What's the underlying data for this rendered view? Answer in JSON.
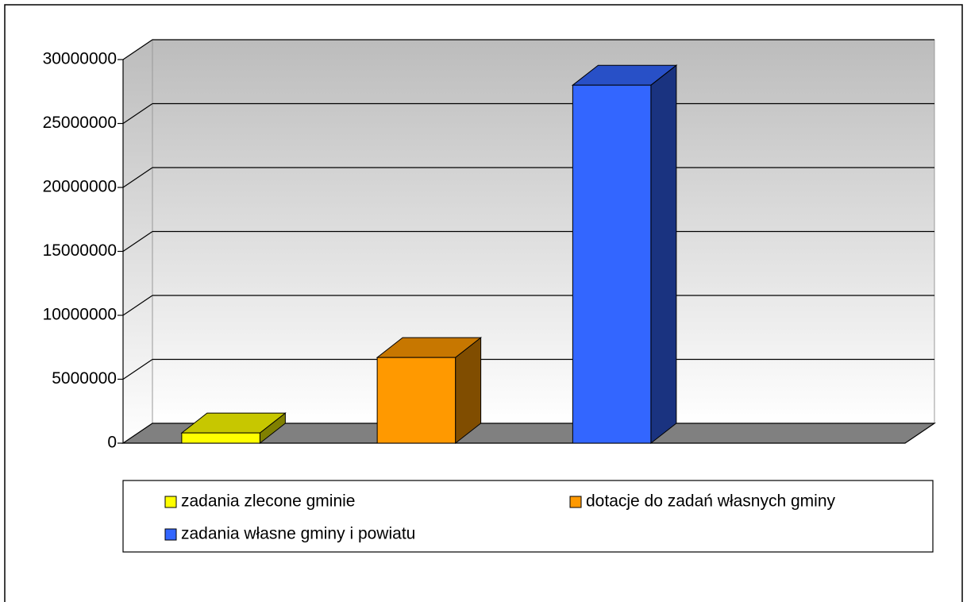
{
  "chart_data": {
    "type": "bar3d",
    "categories": [
      null
    ],
    "series": [
      {
        "name": "zadania zlecone gminie",
        "color": "#ffff00",
        "values": [
          800000
        ]
      },
      {
        "name": "dotacje do zadań własnych gminy",
        "color": "#ff9900",
        "values": [
          6700000
        ]
      },
      {
        "name": "zadania własne gminy i powiatu",
        "color": "#3366ff",
        "values": [
          28000000
        ]
      }
    ],
    "ylim": [
      0,
      30000000
    ],
    "yticks": [
      0,
      5000000,
      10000000,
      15000000,
      20000000,
      25000000,
      30000000
    ],
    "grid": true
  }
}
